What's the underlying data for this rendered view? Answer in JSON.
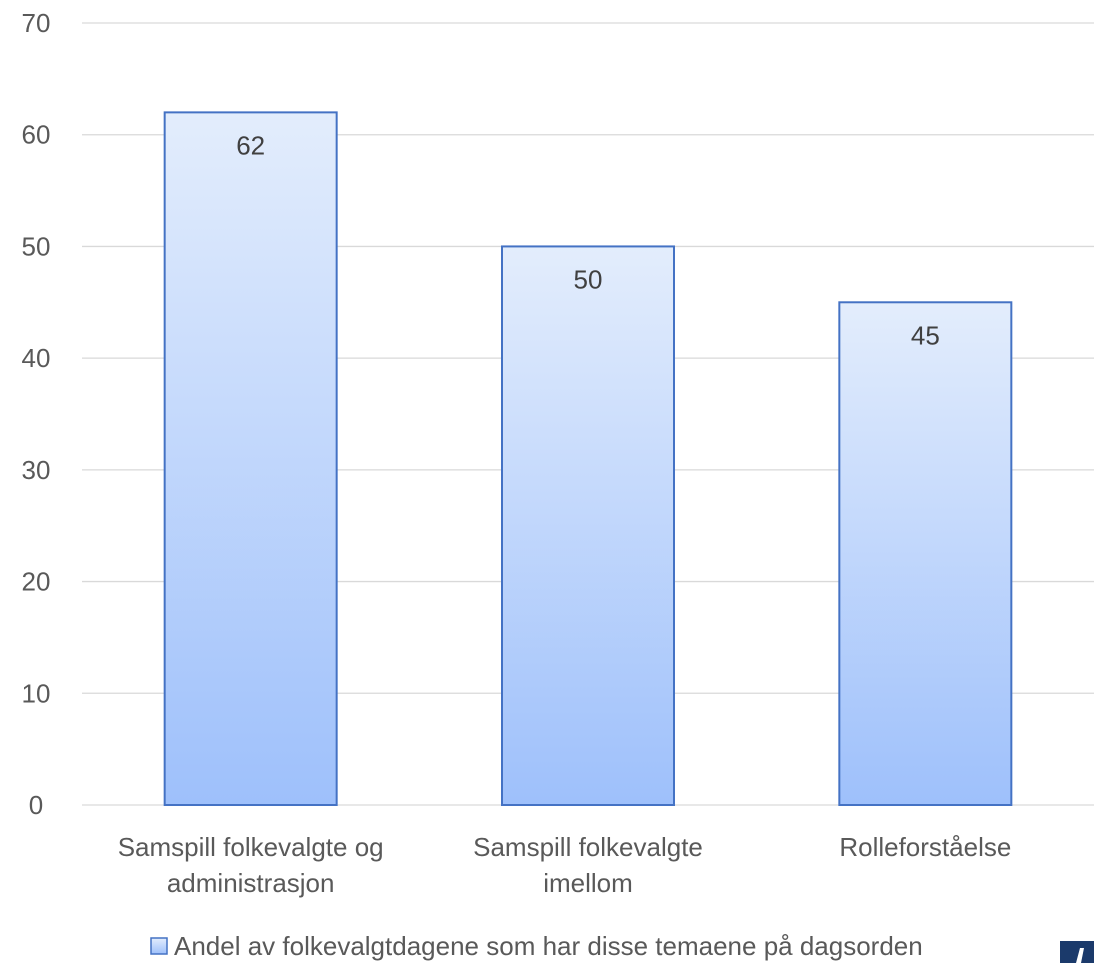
{
  "chart_data": {
    "type": "bar",
    "categories": [
      [
        "Samspill folkevalgte og",
        "administrasjon"
      ],
      [
        "Samspill folkevalgte",
        "imellom"
      ],
      [
        "Rolleforståelse"
      ]
    ],
    "series": [
      {
        "name": "Andel av folkevalgtdagene som har disse temaene på dagsorden",
        "values": [
          62,
          50,
          45
        ]
      }
    ],
    "yticks": [
      "0",
      "10",
      "20",
      "30",
      "40",
      "50",
      "60",
      "70"
    ],
    "ylim": [
      0,
      70
    ],
    "grid": true,
    "legend": "bottom",
    "colors": {
      "bar_top": "#e3edfc",
      "bar_bottom": "#9ec0fb",
      "bar_border": "#4472c4",
      "grid": "#d9d9d9",
      "text": "#595959",
      "logo": "#1b3a6b"
    }
  }
}
